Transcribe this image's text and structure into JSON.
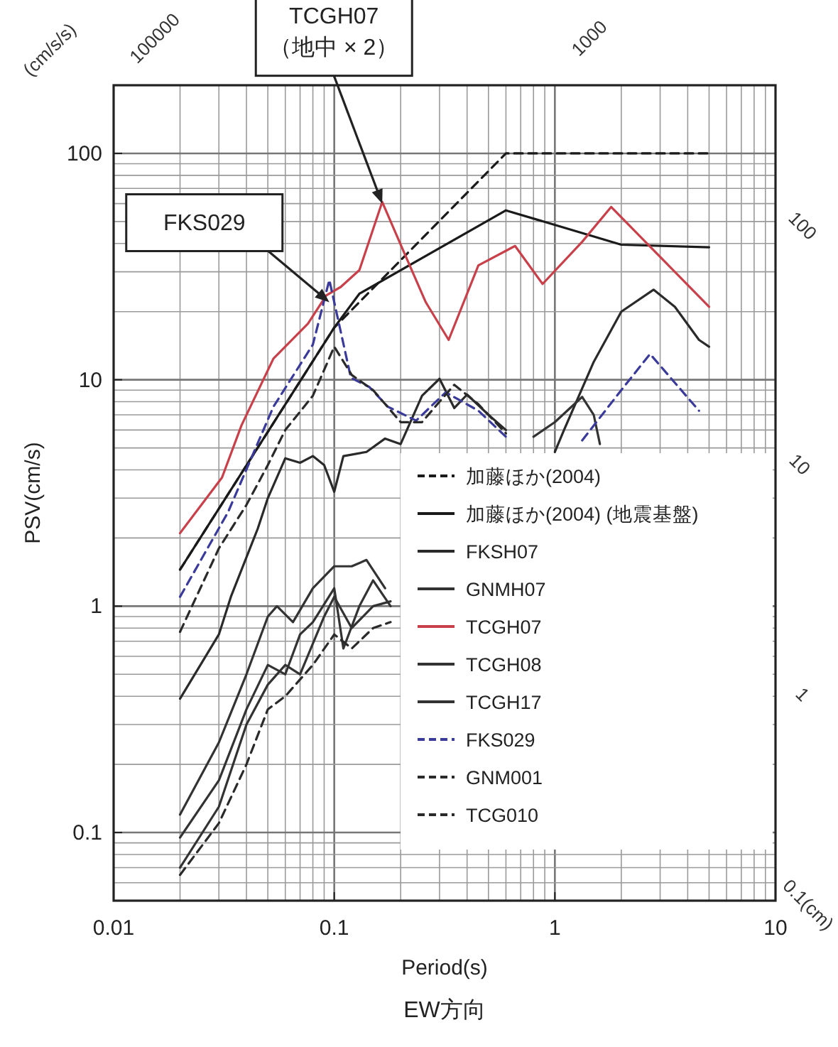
{
  "chart_data": {
    "type": "line",
    "title": "EW方向",
    "xlabel": "Period(s)",
    "ylabel": "PSV(cm/s)",
    "xlim": [
      0.01,
      10
    ],
    "ylim": [
      0.05,
      200
    ],
    "xticks": [
      0.01,
      0.1,
      1,
      10
    ],
    "yticks": [
      0.1,
      1,
      10,
      100
    ],
    "log": "xy",
    "grid": true,
    "legend": "bottom right",
    "annotations": [
      {
        "text": "TCGH07\n（地中 × 2）",
        "x": 0.165,
        "y": 60
      },
      {
        "text": "FKS029",
        "x": 0.095,
        "y": 22
      },
      "(cm/s/s)",
      "100000",
      "1000",
      "100",
      "10",
      "1",
      "0.1(cm)"
    ],
    "series": [
      {
        "name": "加藤ほか(2004)",
        "color": "#1a1a1a",
        "line_style": "dashed",
        "x": [
          0.02,
          0.1,
          0.6,
          5
        ],
        "values": [
          1.45,
          17,
          100,
          100
        ]
      },
      {
        "name": "加藤ほか(2004) (地震基盤)",
        "color": "#1a1a1a",
        "line_style": "solid",
        "x": [
          0.02,
          0.1,
          0.13,
          0.6,
          2.0,
          5
        ],
        "values": [
          1.45,
          17,
          24,
          56,
          39.5,
          38.5
        ]
      },
      {
        "name": "FKSH07",
        "color": "#2a2a2a",
        "line_style": "solid",
        "x": [
          0.02,
          0.03,
          0.034,
          0.045,
          0.05,
          0.06,
          0.07,
          0.08,
          0.09,
          0.1,
          0.11,
          0.14,
          0.17,
          0.2,
          0.25,
          0.3,
          0.35,
          0.4,
          0.5,
          0.6,
          null,
          1.0,
          1.1,
          1.5,
          2.0,
          2.8,
          3.5,
          4.5,
          5
        ],
        "values": [
          0.39,
          0.75,
          1.1,
          2.2,
          3,
          4.5,
          4.3,
          4.6,
          4.2,
          3.2,
          4.6,
          4.8,
          5.5,
          5.2,
          8.5,
          10.1,
          7.5,
          8.6,
          7.0,
          6.0,
          null,
          4.8,
          6,
          12,
          20,
          25,
          21,
          15,
          14
        ]
      },
      {
        "name": "GNMH07",
        "color": "#333333",
        "line_style": "solid",
        "x": [
          0.02,
          0.03,
          0.04,
          0.05,
          0.055,
          0.065,
          0.08,
          0.1,
          0.12,
          0.14,
          0.17,
          null,
          0.8,
          1.0,
          1.33,
          1.5,
          1.6
        ],
        "values": [
          0.12,
          0.25,
          0.5,
          0.9,
          1.0,
          0.85,
          1.2,
          1.5,
          1.5,
          1.6,
          1.2,
          null,
          5.6,
          6.5,
          8.4,
          7,
          5.2
        ]
      },
      {
        "name": "TCGH07",
        "color": "#c8404a",
        "line_style": "solid",
        "x": [
          0.02,
          0.031,
          0.038,
          0.053,
          0.076,
          0.092,
          0.107,
          0.13,
          0.165,
          0.215,
          0.26,
          0.33,
          0.45,
          0.66,
          0.88,
          1.33,
          1.8,
          5
        ],
        "values": [
          2.1,
          3.7,
          6.3,
          12.4,
          17.7,
          23.6,
          25.7,
          30.5,
          61,
          33.6,
          22,
          15,
          32,
          39,
          26.5,
          40.7,
          58,
          21
        ]
      },
      {
        "name": "TCGH08",
        "color": "#333333",
        "line_style": "solid",
        "x": [
          0.02,
          0.03,
          0.04,
          0.05,
          0.06,
          0.07,
          0.08,
          0.1,
          0.11,
          0.13,
          0.15,
          0.18
        ],
        "values": [
          0.095,
          0.17,
          0.35,
          0.55,
          0.5,
          0.75,
          0.85,
          1.2,
          0.65,
          1.0,
          1.3,
          1.0
        ]
      },
      {
        "name": "TCGH17",
        "color": "#333333",
        "line_style": "solid",
        "x": [
          0.02,
          0.03,
          0.04,
          0.05,
          0.06,
          0.07,
          0.09,
          0.1,
          0.12,
          0.15,
          0.18
        ],
        "values": [
          0.07,
          0.13,
          0.3,
          0.45,
          0.55,
          0.5,
          0.9,
          1.1,
          0.8,
          1.0,
          1.05
        ]
      },
      {
        "name": "FKS029",
        "color": "#3a3a9a",
        "line_style": "dashed",
        "x": [
          0.02,
          0.033,
          0.053,
          0.08,
          0.095,
          0.119,
          0.144,
          0.175,
          0.235,
          0.32,
          0.45,
          0.6,
          null,
          1.33,
          2.0,
          2.7,
          4.5
        ],
        "values": [
          1.1,
          2.6,
          7.6,
          14.3,
          27.6,
          10.2,
          9.3,
          7.6,
          6.6,
          8.8,
          7.3,
          5.6,
          null,
          5.4,
          9,
          13,
          7.3
        ]
      },
      {
        "name": "GNM001",
        "color": "#2a2a2a",
        "line_style": "dashed",
        "x": [
          0.02,
          0.03,
          0.04,
          0.05,
          0.06,
          0.08,
          0.1,
          0.12,
          0.15,
          0.2,
          0.25,
          0.3,
          0.35,
          0.45,
          0.6
        ],
        "values": [
          0.77,
          1.8,
          2.8,
          4.2,
          6,
          8.5,
          14,
          10.5,
          9.0,
          6.5,
          6.5,
          8.0,
          9.5,
          7.8,
          5.8
        ]
      },
      {
        "name": "TCG010",
        "color": "#2a2a2a",
        "line_style": "dashed",
        "x": [
          0.02,
          0.03,
          0.04,
          0.05,
          0.06,
          0.08,
          0.1,
          0.12,
          0.15,
          0.18
        ],
        "values": [
          0.065,
          0.11,
          0.2,
          0.35,
          0.4,
          0.55,
          0.75,
          0.65,
          0.8,
          0.85
        ]
      }
    ]
  }
}
